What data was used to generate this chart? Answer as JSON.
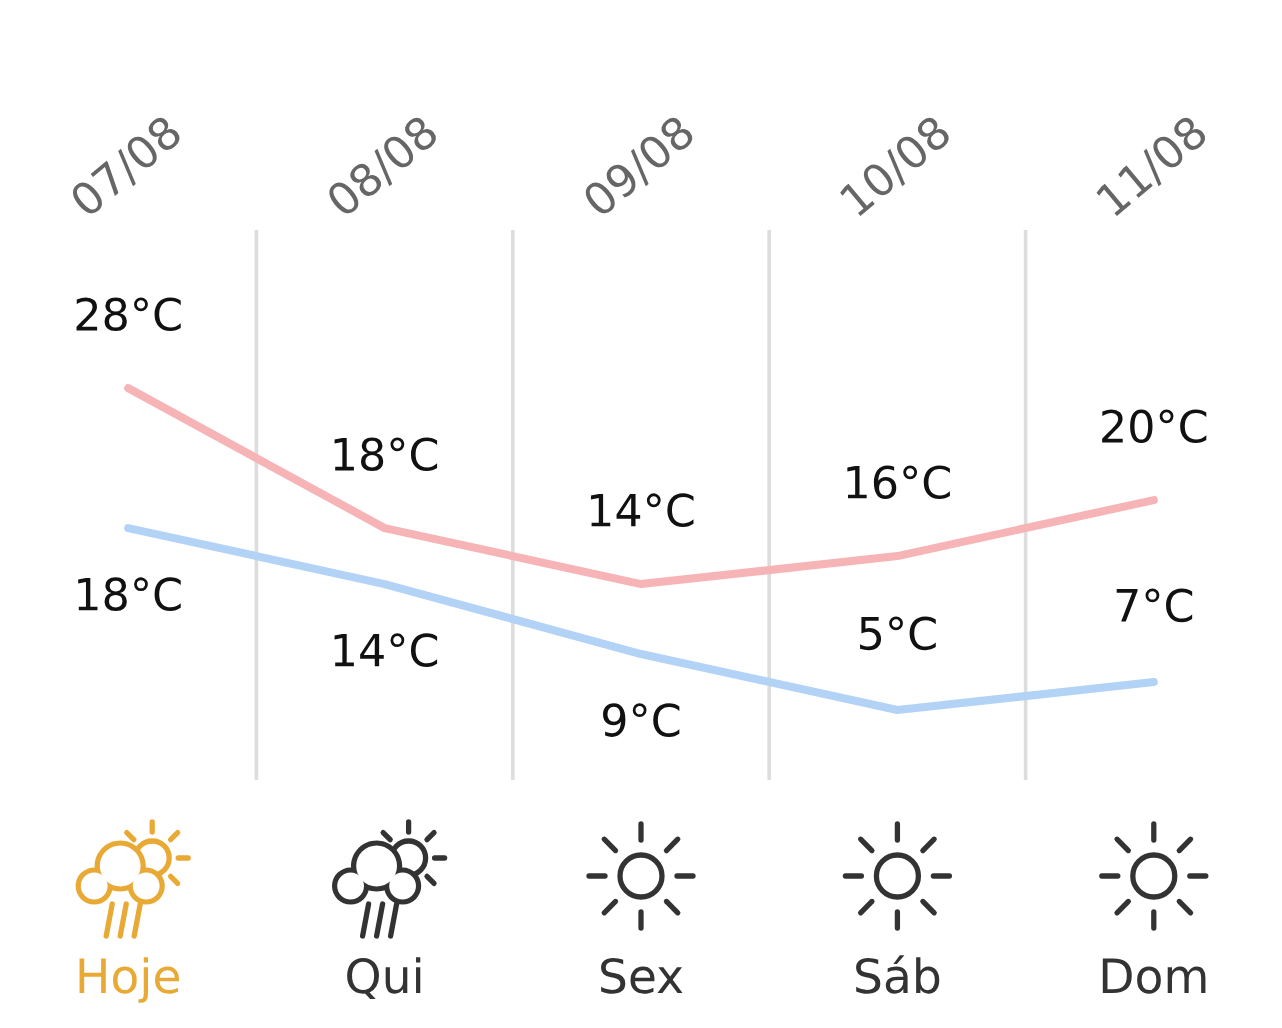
{
  "chart_data": {
    "type": "line",
    "categories": [
      "07/08",
      "08/08",
      "09/08",
      "10/08",
      "11/08"
    ],
    "series": [
      {
        "color": "#f7b4b7",
        "values": [
          28,
          18,
          14,
          16,
          20
        ],
        "value_labels": [
          "28°C",
          "18°C",
          "14°C",
          "16°C",
          "20°C"
        ]
      },
      {
        "color": "#b2d3f6",
        "values": [
          18,
          14,
          9,
          5,
          7
        ],
        "value_labels": [
          "18°C",
          "14°C",
          "9°C",
          "5°C",
          "7°C"
        ]
      }
    ],
    "grid": "x",
    "annotations": [
      "Hoje",
      "Qui",
      "Sex",
      "Sáb",
      "Dom"
    ]
  }
}
